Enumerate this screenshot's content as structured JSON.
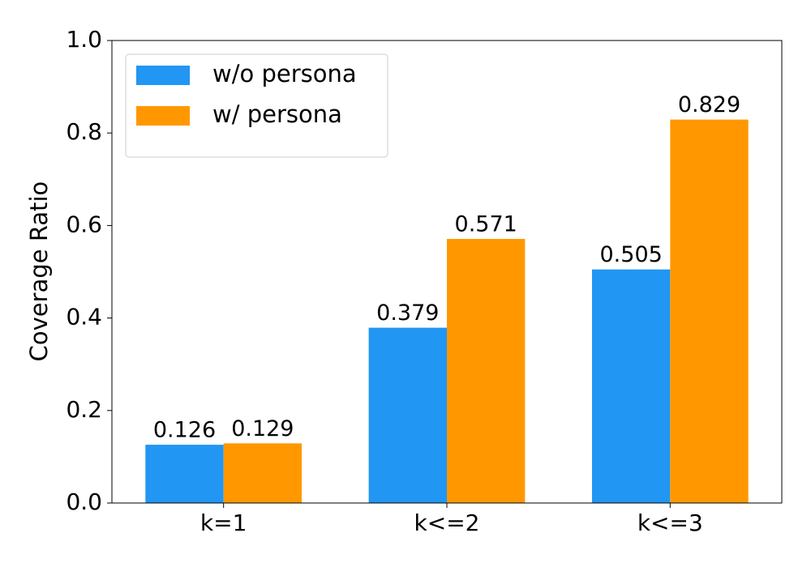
{
  "chart_data": {
    "type": "bar",
    "ylabel": "Coverage Ratio",
    "categories": [
      "k=1",
      "k<=2",
      "k<=3"
    ],
    "series": [
      {
        "name": "w/o persona",
        "color": "#2196f3",
        "values": [
          0.126,
          0.379,
          0.505
        ]
      },
      {
        "name": "w/ persona",
        "color": "#ff9800",
        "values": [
          0.129,
          0.571,
          0.829
        ]
      }
    ],
    "ylim": [
      0,
      1
    ],
    "yticks": [
      {
        "value": 0,
        "label": "0.0"
      },
      0.2,
      0.4,
      0.6,
      0.8,
      {
        "value": 1,
        "label": "1.0"
      }
    ],
    "legend": "upper left",
    "grid": false
  }
}
